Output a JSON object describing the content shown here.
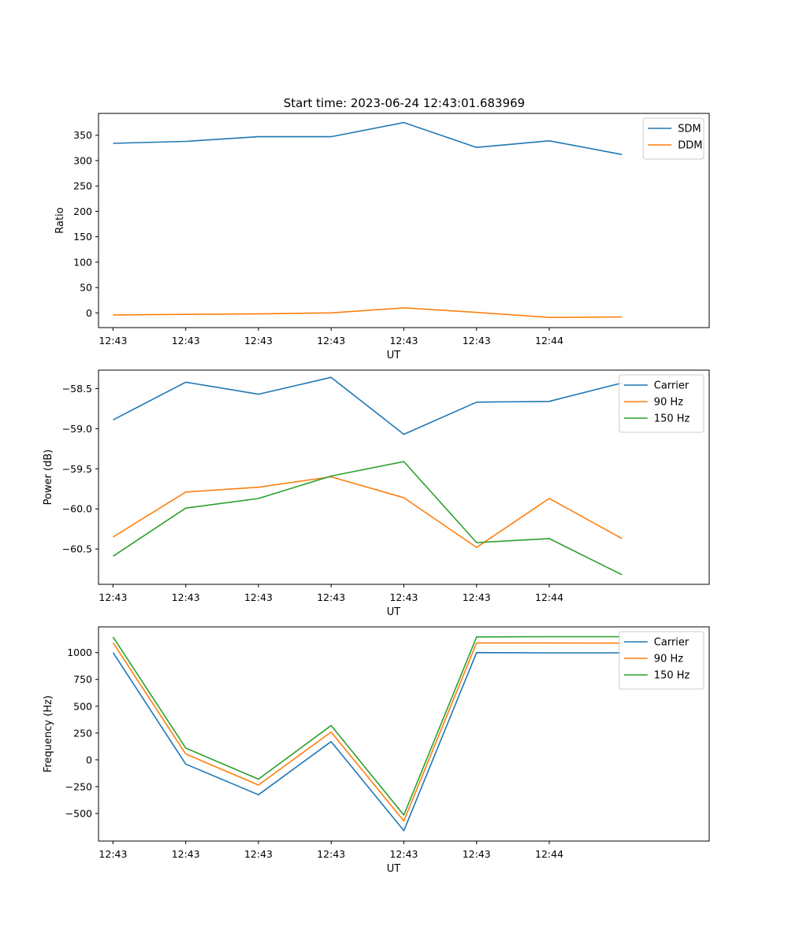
{
  "figure": {
    "title": "Start time: 2023-06-24 12:43:01.683969"
  },
  "chart_data": [
    {
      "type": "line",
      "title": "Start time: 2023-06-24 12:43:01.683969",
      "xlabel": "UT",
      "ylabel": "Ratio",
      "x": [
        1,
        2,
        3,
        4,
        5,
        6,
        7,
        8
      ],
      "xlim": [
        0.8,
        9.2
      ],
      "xticks": [
        1,
        2,
        3,
        4,
        5,
        6,
        7
      ],
      "xtick_labels": [
        "12:43",
        "12:43",
        "12:43",
        "12:43",
        "12:43",
        "12:43",
        "12:44"
      ],
      "ylim": [
        -29,
        393
      ],
      "yticks": [
        0,
        50,
        100,
        150,
        200,
        250,
        300,
        350
      ],
      "ytick_labels": [
        "0",
        "50",
        "100",
        "150",
        "200",
        "250",
        "300",
        "350"
      ],
      "series": [
        {
          "name": "SDM",
          "color": "#1f77b4",
          "values": [
            334,
            338,
            347,
            347,
            375,
            326,
            339,
            312
          ]
        },
        {
          "name": "DDM",
          "color": "#ff7f0e",
          "values": [
            -4,
            -3,
            -2,
            0,
            10,
            1,
            -9,
            -8
          ]
        }
      ],
      "legend": "top-right",
      "grid": false
    },
    {
      "type": "line",
      "xlabel": "UT",
      "ylabel": "Power (dB)",
      "x": [
        1,
        2,
        3,
        4,
        5,
        6,
        7,
        8
      ],
      "xlim": [
        0.8,
        9.2
      ],
      "xticks": [
        1,
        2,
        3,
        4,
        5,
        6,
        7
      ],
      "xtick_labels": [
        "12:43",
        "12:43",
        "12:43",
        "12:43",
        "12:43",
        "12:43",
        "12:44"
      ],
      "ylim": [
        -60.94,
        -58.27
      ],
      "yticks": [
        -60.5,
        -60.0,
        -59.5,
        -59.0,
        -58.5
      ],
      "ytick_labels": [
        "−60.5",
        "−60.0",
        "−59.5",
        "−59.0",
        "−58.5"
      ],
      "series": [
        {
          "name": "Carrier",
          "color": "#1f77b4",
          "values": [
            -58.89,
            -58.42,
            -58.57,
            -58.36,
            -59.07,
            -58.67,
            -58.66,
            -58.43
          ]
        },
        {
          "name": "90 Hz",
          "color": "#ff7f0e",
          "values": [
            -60.35,
            -59.79,
            -59.73,
            -59.6,
            -59.86,
            -60.48,
            -59.87,
            -60.37
          ]
        },
        {
          "name": "150 Hz",
          "color": "#2ca02c",
          "values": [
            -60.59,
            -59.99,
            -59.87,
            -59.59,
            -59.41,
            -60.42,
            -60.37,
            -60.82
          ]
        }
      ],
      "legend": "top-right",
      "grid": false
    },
    {
      "type": "line",
      "xlabel": "UT",
      "ylabel": "Frequency (Hz)",
      "x": [
        1,
        2,
        3,
        4,
        5,
        6,
        7,
        8
      ],
      "xlim": [
        0.8,
        9.2
      ],
      "xticks": [
        1,
        2,
        3,
        4,
        5,
        6,
        7
      ],
      "xtick_labels": [
        "12:43",
        "12:43",
        "12:43",
        "12:43",
        "12:43",
        "12:43",
        "12:44"
      ],
      "ylim": [
        -757,
        1240
      ],
      "yticks": [
        -500,
        -250,
        0,
        250,
        500,
        750,
        1000
      ],
      "ytick_labels": [
        "−500",
        "−250",
        "0",
        "250",
        "500",
        "750",
        "1000"
      ],
      "series": [
        {
          "name": "Carrier",
          "color": "#1f77b4",
          "values": [
            1000,
            -40,
            -325,
            170,
            -660,
            1000,
            998,
            998
          ]
        },
        {
          "name": "90 Hz",
          "color": "#ff7f0e",
          "values": [
            1092,
            55,
            -235,
            260,
            -570,
            1090,
            1090,
            1088
          ]
        },
        {
          "name": "150 Hz",
          "color": "#2ca02c",
          "values": [
            1145,
            110,
            -180,
            320,
            -515,
            1146,
            1148,
            1148
          ]
        }
      ],
      "legend": "top-right",
      "grid": false
    }
  ]
}
